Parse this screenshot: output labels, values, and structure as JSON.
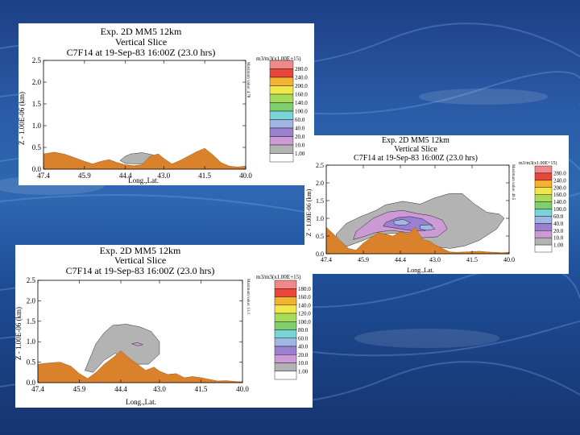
{
  "colors": {
    "background_top": "#1d3f86",
    "terrain": "#d9822b",
    "cloud_low": "#b3b3b3",
    "legend": [
      "#ffffff",
      "#b3b3b3",
      "#cc9bd6",
      "#9b7fd1",
      "#9fb7e2",
      "#7ad3d6",
      "#7fcf6e",
      "#a9db5b",
      "#f0e84a",
      "#f4b233",
      "#e8473a",
      "#f08a8a"
    ]
  },
  "chart_data": [
    {
      "type": "area",
      "title": [
        "Exp. 2D MM5 12km",
        "Vertical Slice",
        "C7F14 at 19-Sep-83 16:00Z (23.0 hrs)"
      ],
      "xlabel": "Long.,Lat.",
      "ylabel": "Z - 1.00E-06 (km)",
      "x_ticks": [
        "47.4",
        "45.9",
        "44.4",
        "43.0",
        "41.5",
        "40.0"
      ],
      "y_ticks": [
        "0.0",
        "0.5",
        "1.0",
        "1.5",
        "2.0",
        "2.5"
      ],
      "xlim": [
        47.4,
        40.0
      ],
      "ylim": [
        0,
        2.5
      ],
      "legend_title": "m3/m3(x1.00E+15)",
      "legend_values": [
        "280.0",
        "240.0",
        "200.0",
        "160.0",
        "140.0",
        "100.0",
        "60.0",
        "40.0",
        "20.0",
        "10.0",
        "1.00"
      ],
      "side_note": "Maximum value: 4.78",
      "terrain": {
        "x": [
          47.4,
          47.0,
          46.6,
          46.2,
          45.9,
          45.6,
          45.3,
          45.0,
          44.7,
          44.4,
          44.1,
          43.8,
          43.5,
          43.2,
          43.0,
          42.7,
          42.4,
          42.1,
          41.8,
          41.5,
          41.2,
          40.9,
          40.6,
          40.3,
          40.0
        ],
        "y": [
          0.35,
          0.39,
          0.34,
          0.25,
          0.18,
          0.12,
          0.18,
          0.22,
          0.15,
          0.1,
          0.08,
          0.1,
          0.3,
          0.35,
          0.25,
          0.12,
          0.2,
          0.3,
          0.4,
          0.48,
          0.33,
          0.15,
          0.07,
          0.05,
          0.07
        ]
      },
      "cloud_regions": [
        {
          "level": "1.00",
          "x": [
            44.2,
            43.8,
            43.4,
            43.4,
            43.8,
            44.4,
            44.6,
            44.4
          ],
          "y": [
            0.35,
            0.38,
            0.33,
            0.17,
            0.12,
            0.13,
            0.2,
            0.3
          ]
        }
      ]
    },
    {
      "type": "area",
      "title": [
        "Exp. 2D MM5 12km",
        "Vertical Slice",
        "C7F14 at 19-Sep-83 16:00Z (23.0 hrs)"
      ],
      "xlabel": "Long.,Lat.",
      "ylabel": "Z - 1.00E-06 (km)",
      "x_ticks": [
        "47.4",
        "45.9",
        "44.4",
        "43.0",
        "41.5",
        "40.0"
      ],
      "y_ticks": [
        "0.0",
        "0.5",
        "1.0",
        "1.5",
        "2.0",
        "2.5"
      ],
      "xlim": [
        47.4,
        40.0
      ],
      "ylim": [
        0,
        2.5
      ],
      "legend_title": "m3/m3(x1.00E+15)",
      "legend_values": [
        "280.0",
        "240.0",
        "200.0",
        "160.0",
        "140.0",
        "100.0",
        "60.0",
        "40.0",
        "20.0",
        "10.0",
        "1.00"
      ],
      "side_note": "Maximum value: 49.5",
      "terrain": {
        "x": [
          47.4,
          47.1,
          46.8,
          46.5,
          46.2,
          45.9,
          45.6,
          45.3,
          45.0,
          44.7,
          44.4,
          44.1,
          43.8,
          43.5,
          43.2,
          43.0,
          42.7,
          42.4,
          42.1,
          41.8,
          41.5,
          41.2,
          40.9,
          40.6,
          40.3,
          40.0
        ],
        "y": [
          0.75,
          0.55,
          0.35,
          0.15,
          0.1,
          0.3,
          0.45,
          0.6,
          0.55,
          0.5,
          0.62,
          0.55,
          0.75,
          0.4,
          0.35,
          0.25,
          0.15,
          0.05,
          0.04,
          0.05,
          0.06,
          0.07,
          0.05,
          0.04,
          0.03,
          0.04
        ]
      },
      "cloud_regions": [
        {
          "level": "1.00",
          "x": [
            47.0,
            46.6,
            46.0,
            45.4,
            45.0,
            44.3,
            43.6,
            43.0,
            42.4,
            41.9,
            41.4,
            40.9,
            40.4,
            40.2,
            40.5,
            41.2,
            41.8,
            42.4,
            43.0,
            43.5,
            44.0,
            44.6,
            45.3,
            46.0,
            46.6,
            47.0
          ],
          "y": [
            0.55,
            0.85,
            1.05,
            1.22,
            1.38,
            1.48,
            1.4,
            1.58,
            1.7,
            1.7,
            1.4,
            1.17,
            1.12,
            1.0,
            0.7,
            0.38,
            0.22,
            0.15,
            0.2,
            0.35,
            0.55,
            0.58,
            0.55,
            0.35,
            0.2,
            0.4
          ]
        },
        {
          "level": "20.0",
          "x": [
            46.2,
            45.5,
            44.9,
            44.3,
            43.7,
            43.2,
            42.7,
            42.5,
            42.9,
            43.5,
            44.1,
            44.8,
            45.4,
            45.9,
            46.3
          ],
          "y": [
            0.62,
            1.0,
            1.18,
            1.22,
            1.13,
            1.08,
            0.95,
            0.7,
            0.48,
            0.45,
            0.6,
            0.66,
            0.6,
            0.48,
            0.4
          ]
        },
        {
          "level": "40.0",
          "x": [
            45.0,
            44.5,
            44.0,
            43.5,
            43.1,
            43.4,
            44.0,
            44.6,
            45.1
          ],
          "y": [
            0.88,
            1.02,
            1.05,
            0.98,
            0.8,
            0.65,
            0.66,
            0.72,
            0.78
          ]
        },
        {
          "level": "60.0",
          "x": [
            44.7,
            44.3,
            44.0,
            44.2,
            44.6
          ],
          "y": [
            0.92,
            0.97,
            0.88,
            0.8,
            0.82
          ]
        },
        {
          "level": "60.0",
          "x": [
            43.6,
            43.2,
            43.0,
            43.3,
            43.6
          ],
          "y": [
            0.8,
            0.82,
            0.7,
            0.66,
            0.7
          ]
        }
      ]
    },
    {
      "type": "area",
      "title": [
        "Exp. 2D MM5 12km",
        "Vertical Slice",
        "C7F14 at 19-Sep-83 16:00Z (23.0 hrs)"
      ],
      "xlabel": "Long.,Lat.",
      "ylabel": "Z - 1.00E-06 (km)",
      "x_ticks": [
        "47.4",
        "45.9",
        "44.4",
        "43.0",
        "41.5",
        "40.0"
      ],
      "y_ticks": [
        "0.0",
        "0.5",
        "1.0",
        "1.5",
        "2.0",
        "2.5"
      ],
      "xlim": [
        47.4,
        40.0
      ],
      "ylim": [
        0,
        2.5
      ],
      "legend_title": "m3/m3(x1.00E+15)",
      "legend_values": [
        "180.0",
        "160.0",
        "140.0",
        "120.0",
        "100.0",
        "80.0",
        "60.0",
        "40.0",
        "20.0",
        "10.0",
        "1.00"
      ],
      "side_note": "Maximum value: 13.1",
      "terrain": {
        "x": [
          47.4,
          47.0,
          46.6,
          46.2,
          45.9,
          45.6,
          45.3,
          45.0,
          44.7,
          44.4,
          44.1,
          43.8,
          43.5,
          43.2,
          43.0,
          42.7,
          42.4,
          42.1,
          41.8,
          41.5,
          41.2,
          40.9,
          40.6,
          40.3,
          40.0
        ],
        "y": [
          0.45,
          0.48,
          0.5,
          0.4,
          0.22,
          0.1,
          0.25,
          0.45,
          0.6,
          0.78,
          0.6,
          0.45,
          0.3,
          0.38,
          0.28,
          0.2,
          0.22,
          0.12,
          0.15,
          0.12,
          0.08,
          0.04,
          0.05,
          0.03,
          0.02
        ]
      },
      "cloud_regions": [
        {
          "level": "1.00",
          "x": [
            45.3,
            45.0,
            44.7,
            44.2,
            43.7,
            43.3,
            43.0,
            43.0,
            43.4,
            43.8,
            44.2,
            44.6,
            45.0,
            45.4,
            45.7
          ],
          "y": [
            0.95,
            1.22,
            1.4,
            1.43,
            1.36,
            1.25,
            1.0,
            0.7,
            0.45,
            0.45,
            0.55,
            0.72,
            0.55,
            0.25,
            0.3
          ]
        },
        {
          "level": "10.0",
          "x": [
            44.0,
            43.8,
            43.6,
            43.8
          ],
          "y": [
            0.95,
            0.98,
            0.93,
            0.9
          ]
        }
      ]
    }
  ]
}
